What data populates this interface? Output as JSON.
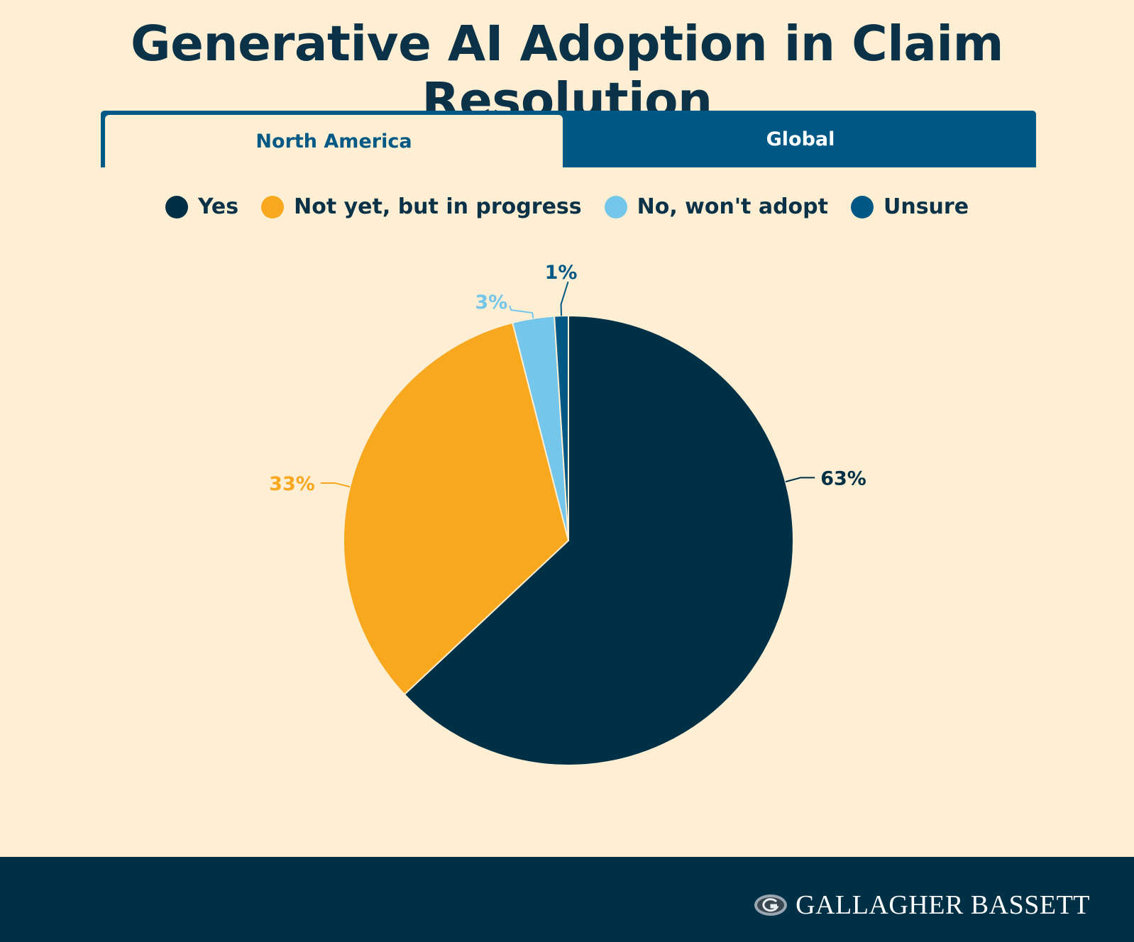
{
  "header": {
    "title": "Generative AI Adoption in Claim Resolution"
  },
  "tabs": [
    {
      "label": "North America",
      "active": true
    },
    {
      "label": "Global",
      "active": false
    }
  ],
  "colors": {
    "background": "#fdeed4",
    "accent": "#005884",
    "dark": "#003046"
  },
  "chart_data": {
    "type": "pie",
    "title": "",
    "legend_position": "top",
    "series": [
      {
        "name": "Yes",
        "value": 63,
        "label": "63%",
        "color": "#003046"
      },
      {
        "name": "Not yet, but in progress",
        "value": 33,
        "label": "33%",
        "color": "#f8a81e"
      },
      {
        "name": "No, won't adopt",
        "value": 3,
        "label": "3%",
        "color": "#74c6ea"
      },
      {
        "name": "Unsure",
        "value": 1,
        "label": "1%",
        "color": "#005884"
      }
    ]
  },
  "footer": {
    "logo_text": "GALLAGHER BASSETT",
    "logo_icon": "gallagher-g-icon"
  }
}
